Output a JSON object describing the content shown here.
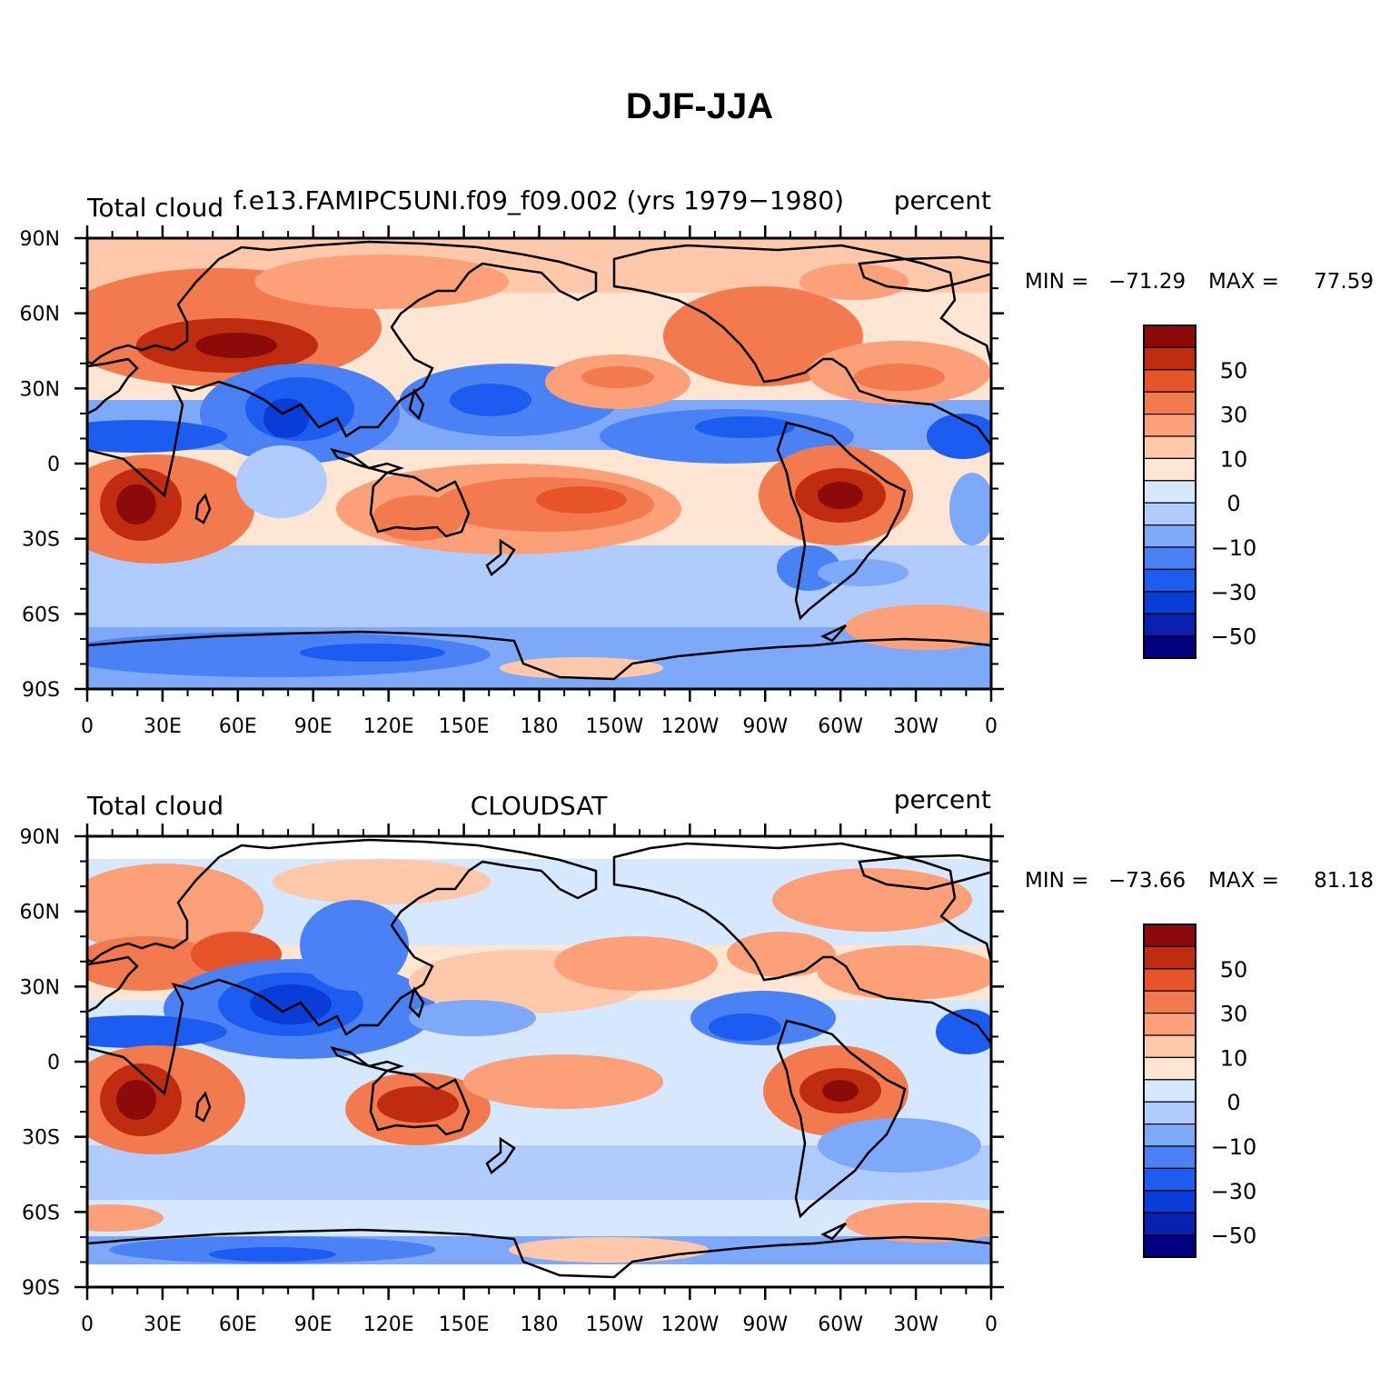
{
  "figure_title": "DJF-JJA",
  "palette": [
    "#000080",
    "#0a20b0",
    "#0a3cd8",
    "#1c5cf0",
    "#4a82f5",
    "#7ea8fa",
    "#b0ccff",
    "#d6e8ff",
    "#ffe6d2",
    "#ffc8ab",
    "#fca07a",
    "#f27a4e",
    "#e8542a",
    "#c02c10",
    "#8c0a0a"
  ],
  "contour_levels": [
    -60,
    -50,
    -40,
    -30,
    -20,
    -10,
    -5,
    0,
    5,
    10,
    20,
    30,
    40,
    50,
    60
  ],
  "colorbar_labels": [
    "50",
    "30",
    "10",
    "0",
    "−10",
    "−30",
    "−50"
  ],
  "lon_ticks": [
    "0",
    "30E",
    "60E",
    "90E",
    "120E",
    "150E",
    "180",
    "150W",
    "120W",
    "90W",
    "60W",
    "30W",
    "0"
  ],
  "lat_ticks": [
    "90N",
    "60N",
    "30N",
    "0",
    "30S",
    "60S",
    "90S"
  ],
  "panels": [
    {
      "left_string": "Total cloud",
      "center_string": "f.e13.FAMIPC5UNI.f09_f09.002 (yrs 1979−1980)",
      "right_string": "percent",
      "min_label": "MIN = ",
      "min_value": "−71.29",
      "max_label": "MAX = ",
      "max_value": "77.59",
      "data_lat_range": [
        -90,
        90
      ]
    },
    {
      "left_string": "Total cloud",
      "center_string": "CLOUDSAT",
      "right_string": "percent",
      "min_label": "MIN = ",
      "min_value": "−73.66",
      "max_label": "MAX = ",
      "max_value": "81.18",
      "data_lat_range": [
        -82,
        82
      ]
    }
  ]
}
